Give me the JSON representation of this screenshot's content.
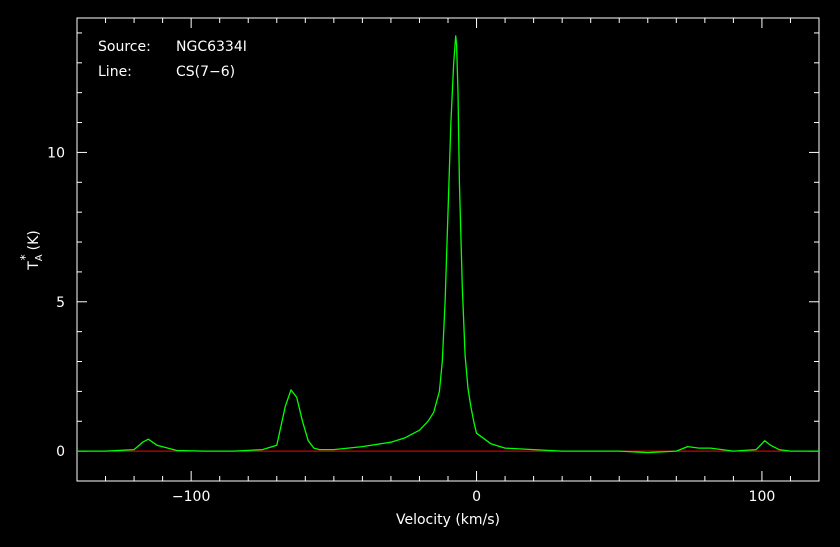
{
  "colors": {
    "background": "#000000",
    "axes": "#ffffff",
    "spectrum": "#00ff00",
    "baseline": "#ff0000"
  },
  "annotations": {
    "source_label": "Source:",
    "source_value": "NGC6334I",
    "line_label": "Line:",
    "line_value": "CS(7−6)"
  },
  "chart_data": {
    "type": "line",
    "title": "",
    "xlabel": "Velocity (km/s)",
    "ylabel_main": "T",
    "ylabel_sup": "*",
    "ylabel_sub": "A",
    "ylabel_unit": "(K)",
    "xlim": [
      -140,
      120
    ],
    "ylim": [
      -1,
      14.5
    ],
    "x_ticks": [
      -100,
      0,
      100
    ],
    "x_tick_labels": [
      "−100",
      "0",
      "100"
    ],
    "y_ticks": [
      0,
      5,
      10
    ],
    "y_tick_labels": [
      "0",
      "5",
      "10"
    ],
    "grid": false,
    "legend": "none",
    "baseline": {
      "name": "baseline",
      "y": 0,
      "x_range": [
        -140,
        120
      ]
    },
    "series": [
      {
        "x": [
          -140,
          -130,
          -120,
          -117,
          -115,
          -112,
          -105,
          -95,
          -85,
          -75,
          -70,
          -67,
          -65,
          -63,
          -61,
          -59,
          -57,
          -55,
          -50,
          -40,
          -30,
          -25,
          -20,
          -17,
          -15,
          -13,
          -12,
          -11,
          -10,
          -9,
          -8,
          -7.3,
          -7,
          -6.5,
          -6,
          -5,
          -4,
          -3,
          -2,
          -1,
          0,
          5,
          10,
          20,
          30,
          50,
          60,
          70,
          74,
          78,
          82,
          86,
          90,
          98,
          101,
          103,
          106,
          110,
          120
        ],
        "y": [
          0.0,
          0.0,
          0.05,
          0.3,
          0.4,
          0.2,
          0.02,
          0.0,
          0.0,
          0.05,
          0.2,
          1.5,
          2.05,
          1.8,
          1.0,
          0.35,
          0.1,
          0.05,
          0.05,
          0.15,
          0.3,
          0.45,
          0.7,
          1.0,
          1.3,
          2.0,
          3.0,
          5.0,
          8.0,
          11.0,
          13.0,
          13.9,
          13.6,
          12.0,
          9.0,
          5.5,
          3.2,
          2.1,
          1.5,
          1.0,
          0.6,
          0.25,
          0.1,
          0.05,
          0.0,
          0.0,
          -0.05,
          0.0,
          0.15,
          0.1,
          0.1,
          0.05,
          0.0,
          0.05,
          0.35,
          0.2,
          0.05,
          0.0,
          0.0
        ]
      }
    ]
  }
}
